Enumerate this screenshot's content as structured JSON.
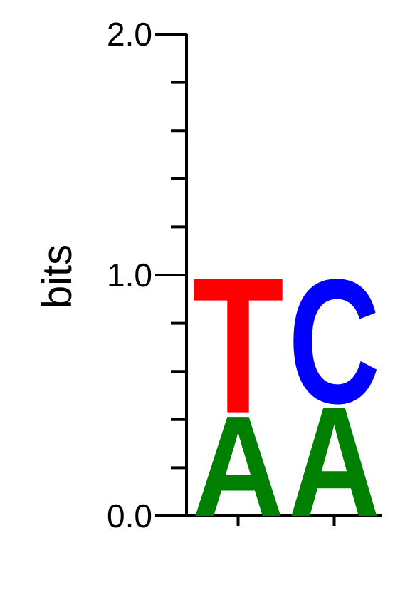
{
  "chart_data": {
    "type": "sequence-logo",
    "title": "",
    "ylabel": "bits",
    "ylim": [
      0,
      2
    ],
    "yticks": [
      {
        "value": 0.0,
        "label": "0.0"
      },
      {
        "value": 1.0,
        "label": "1.0"
      },
      {
        "value": 2.0,
        "label": "2.0"
      }
    ],
    "minor_tick_step": 0.2,
    "positions": [
      {
        "index": 1,
        "stack": [
          {
            "letter": "A",
            "bits": 0.43,
            "color": "#008000"
          },
          {
            "letter": "T",
            "bits": 0.58,
            "color": "#ff0000"
          }
        ]
      },
      {
        "index": 2,
        "stack": [
          {
            "letter": "A",
            "bits": 0.47,
            "color": "#008000"
          },
          {
            "letter": "C",
            "bits": 0.53,
            "color": "#0000ff"
          }
        ]
      }
    ]
  }
}
